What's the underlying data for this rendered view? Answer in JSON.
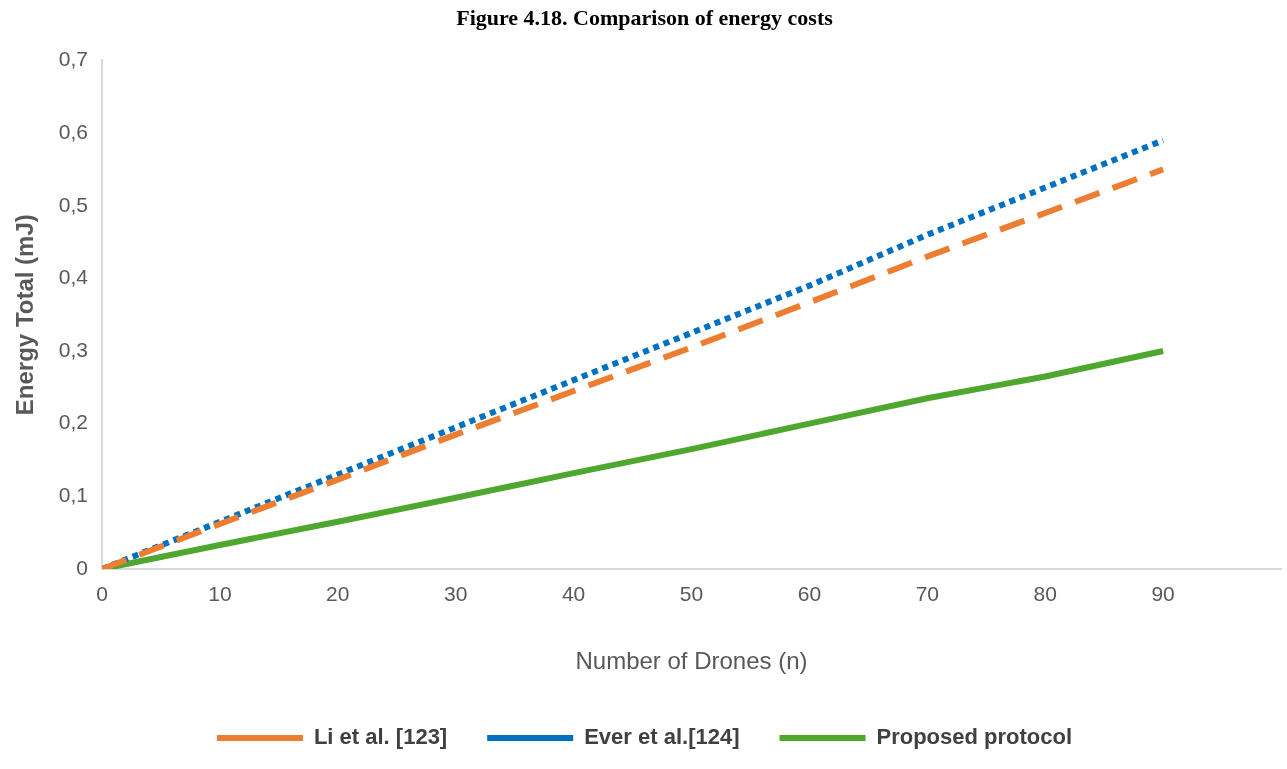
{
  "chart_data": {
    "type": "line",
    "title": "Figure 4.18. Comparison of energy costs",
    "xlabel": "Number of Drones (n)",
    "ylabel": "Energy Total (mJ)",
    "x": [
      0,
      10,
      20,
      30,
      40,
      50,
      60,
      70,
      80,
      90
    ],
    "series": [
      {
        "name": "Li et al. [123]",
        "color": "#ed7d31",
        "line_style": "dashed",
        "values": [
          0,
          0.062,
          0.123,
          0.185,
          0.245,
          0.305,
          0.367,
          0.43,
          0.49,
          0.55
        ]
      },
      {
        "name": "Ever et al.[124]",
        "color": "#0070c0",
        "line_style": "dotted",
        "values": [
          0,
          0.065,
          0.13,
          0.195,
          0.26,
          0.325,
          0.39,
          0.46,
          0.525,
          0.59
        ]
      },
      {
        "name": "Proposed protocol",
        "color": "#4ea72e",
        "line_style": "solid",
        "values": [
          0,
          0.033,
          0.065,
          0.098,
          0.132,
          0.165,
          0.2,
          0.235,
          0.265,
          0.3
        ]
      }
    ],
    "xlim": [
      0,
      100
    ],
    "xticks": [
      0,
      10,
      20,
      30,
      40,
      50,
      60,
      70,
      80,
      90
    ],
    "ylim": [
      0,
      0.7
    ],
    "yticks": [
      0,
      {
        "value": 0.1,
        "label": "0,1"
      },
      {
        "value": 0.2,
        "label": "0,2"
      },
      {
        "value": 0.3,
        "label": "0,3"
      },
      {
        "value": 0.4,
        "label": "0,4"
      },
      {
        "value": 0.5,
        "label": "0,5"
      },
      {
        "value": 0.6,
        "label": "0,6"
      },
      {
        "value": 0.7,
        "label": "0,7"
      }
    ],
    "grid": false,
    "legend": "bottom",
    "marker": "none"
  }
}
